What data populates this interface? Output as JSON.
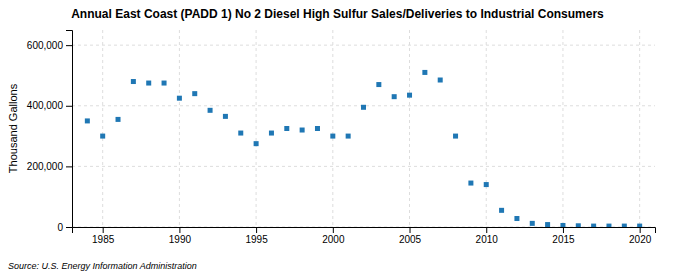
{
  "chart_data": {
    "type": "scatter",
    "title": "Annual East Coast (PADD 1) No 2 Diesel High Sulfur Sales/Deliveries to Industrial Consumers",
    "ylabel": "Thousand Gallons",
    "annotations": [
      "Source: U.S. Energy Information Administration"
    ],
    "x": [
      1984,
      1985,
      1986,
      1987,
      1988,
      1989,
      1990,
      1991,
      1992,
      1993,
      1994,
      1995,
      1996,
      1997,
      1998,
      1999,
      2000,
      2001,
      2002,
      2003,
      2004,
      2005,
      2006,
      2007,
      2008,
      2009,
      2010,
      2011,
      2012,
      2013,
      2014,
      2015,
      2016,
      2017,
      2018,
      2019,
      2020
    ],
    "values": [
      350000,
      300000,
      355000,
      480000,
      475000,
      475000,
      425000,
      440000,
      385000,
      365000,
      310000,
      275000,
      310000,
      325000,
      320000,
      325000,
      300000,
      300000,
      395000,
      470000,
      430000,
      435000,
      510000,
      485000,
      300000,
      145000,
      140000,
      55000,
      28000,
      12000,
      8000,
      5000,
      4000,
      3000,
      3000,
      3000,
      3000
    ],
    "marker": "square",
    "xlim": [
      1983,
      2021
    ],
    "ylim": [
      0,
      650000
    ],
    "xticks": [
      1985,
      1990,
      1995,
      2000,
      2005,
      2010,
      2015,
      2020
    ],
    "yticks": [
      0,
      {
        "value": 200000,
        "label": "200,000"
      },
      {
        "value": 400000,
        "label": "400,000"
      },
      {
        "value": 600000,
        "label": "600,000"
      }
    ],
    "grid": true
  }
}
